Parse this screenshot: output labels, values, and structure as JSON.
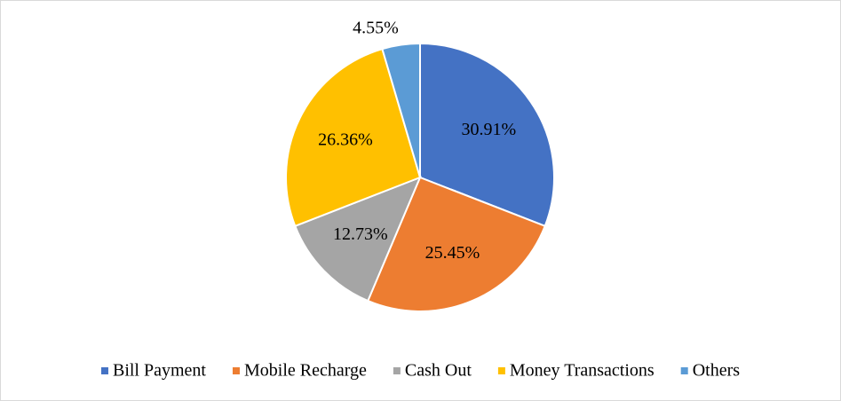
{
  "chart_data": {
    "type": "pie",
    "categories": [
      "Bill Payment",
      "Mobile Recharge",
      "Cash Out",
      "Money Transactions",
      "Others"
    ],
    "values": [
      30.91,
      25.45,
      12.73,
      26.36,
      4.55
    ],
    "value_labels": [
      "30.91%",
      "25.45%",
      "12.73%",
      "26.36%",
      "4.55%"
    ],
    "colors": [
      "#4472c4",
      "#ed7d31",
      "#a5a5a5",
      "#ffc000",
      "#5b9bd5"
    ],
    "legend": "bottom"
  }
}
